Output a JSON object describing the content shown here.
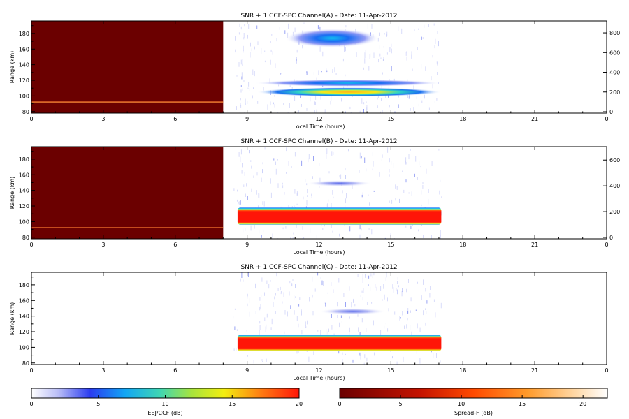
{
  "chart_data": [
    {
      "type": "heatmap",
      "panel": "A",
      "title": "SNR + 1 CCF-SPC Channel(A) - Date: 11-Apr-2012",
      "xlabel": "Local Time (hours)",
      "ylabel": "Range (km)",
      "xlim": [
        0,
        24
      ],
      "ylim": [
        78,
        196
      ],
      "x_ticks": [
        "0",
        "3",
        "6",
        "9",
        "12",
        "15",
        "18",
        "21",
        "0"
      ],
      "y_ticks": [
        "80",
        "100",
        "120",
        "140",
        "160",
        "180"
      ],
      "right_axis_ticks": [
        "0",
        "200",
        "400",
        "600",
        "800"
      ],
      "regions": [
        {
          "name": "Spread-F block",
          "colorscale": "spreadf",
          "x": [
            0,
            8
          ],
          "y": [
            78,
            196
          ],
          "level_db": 0
        },
        {
          "name": "Spread-F trace",
          "colorscale": "spreadf",
          "x": [
            0,
            8
          ],
          "y": [
            91.5,
            93
          ],
          "level_db": 9
        }
      ],
      "blobs": [
        {
          "x": [
            10.6,
            14.5
          ],
          "y": [
            162,
            186
          ],
          "peak_db": 5
        },
        {
          "x": [
            9.3,
            17.1
          ],
          "y": [
            112,
            121
          ],
          "peak_db": 4
        },
        {
          "x": [
            9.4,
            17.1
          ],
          "y": [
            99,
            111
          ],
          "peak_db": 14
        }
      ]
    },
    {
      "type": "heatmap",
      "panel": "B",
      "title": "SNR + 1 CCF-SPC Channel(B) - Date: 11-Apr-2012",
      "xlabel": "Local Time (hours)",
      "ylabel": "Range (km)",
      "xlim": [
        0,
        24
      ],
      "ylim": [
        78,
        196
      ],
      "x_ticks": [
        "0",
        "3",
        "6",
        "9",
        "12",
        "15",
        "18",
        "21",
        "0"
      ],
      "y_ticks": [
        "80",
        "100",
        "120",
        "140",
        "160",
        "180"
      ],
      "right_axis_ticks": [
        "0",
        "200",
        "400",
        "600"
      ],
      "regions": [
        {
          "name": "Spread-F block",
          "colorscale": "spreadf",
          "x": [
            0,
            8
          ],
          "y": [
            78,
            196
          ],
          "level_db": 0
        },
        {
          "name": "Spread-F trace",
          "colorscale": "spreadf",
          "x": [
            0,
            8
          ],
          "y": [
            91.5,
            93
          ],
          "level_db": 9
        }
      ],
      "blobs": [
        {
          "x": [
            11.5,
            14.2
          ],
          "y": [
            145,
            153
          ],
          "peak_db": 2
        },
        {
          "x": [
            8.6,
            17.1
          ],
          "y": [
            96,
            118
          ],
          "peak_db": 20
        }
      ]
    },
    {
      "type": "heatmap",
      "panel": "C",
      "title": "SNR + 1 CCF-SPC Channel(C) - Date: 11-Apr-2012",
      "xlabel": "Local Time (hours)",
      "ylabel": "Range (km)",
      "xlim": [
        0,
        24
      ],
      "ylim": [
        78,
        196
      ],
      "x_ticks": [
        "0",
        "3",
        "6",
        "9",
        "12",
        "15",
        "18",
        "21",
        "0"
      ],
      "y_ticks": [
        "80",
        "100",
        "120",
        "140",
        "160",
        "180"
      ],
      "blobs": [
        {
          "x": [
            12.0,
            14.8
          ],
          "y": [
            142,
            150
          ],
          "peak_db": 2
        },
        {
          "x": [
            8.6,
            17.1
          ],
          "y": [
            95,
            116
          ],
          "peak_db": 20
        }
      ]
    }
  ],
  "colorbars": [
    {
      "label": "EEJ/CCF (dB)",
      "colorscale": "eej",
      "range": [
        0,
        20
      ],
      "ticks": [
        "0",
        "5",
        "10",
        "15",
        "20"
      ]
    },
    {
      "label": "Spread-F (dB)",
      "colorscale": "spreadf",
      "range": [
        0,
        22
      ],
      "ticks": [
        "0",
        "5",
        "10",
        "15",
        "20"
      ]
    }
  ]
}
